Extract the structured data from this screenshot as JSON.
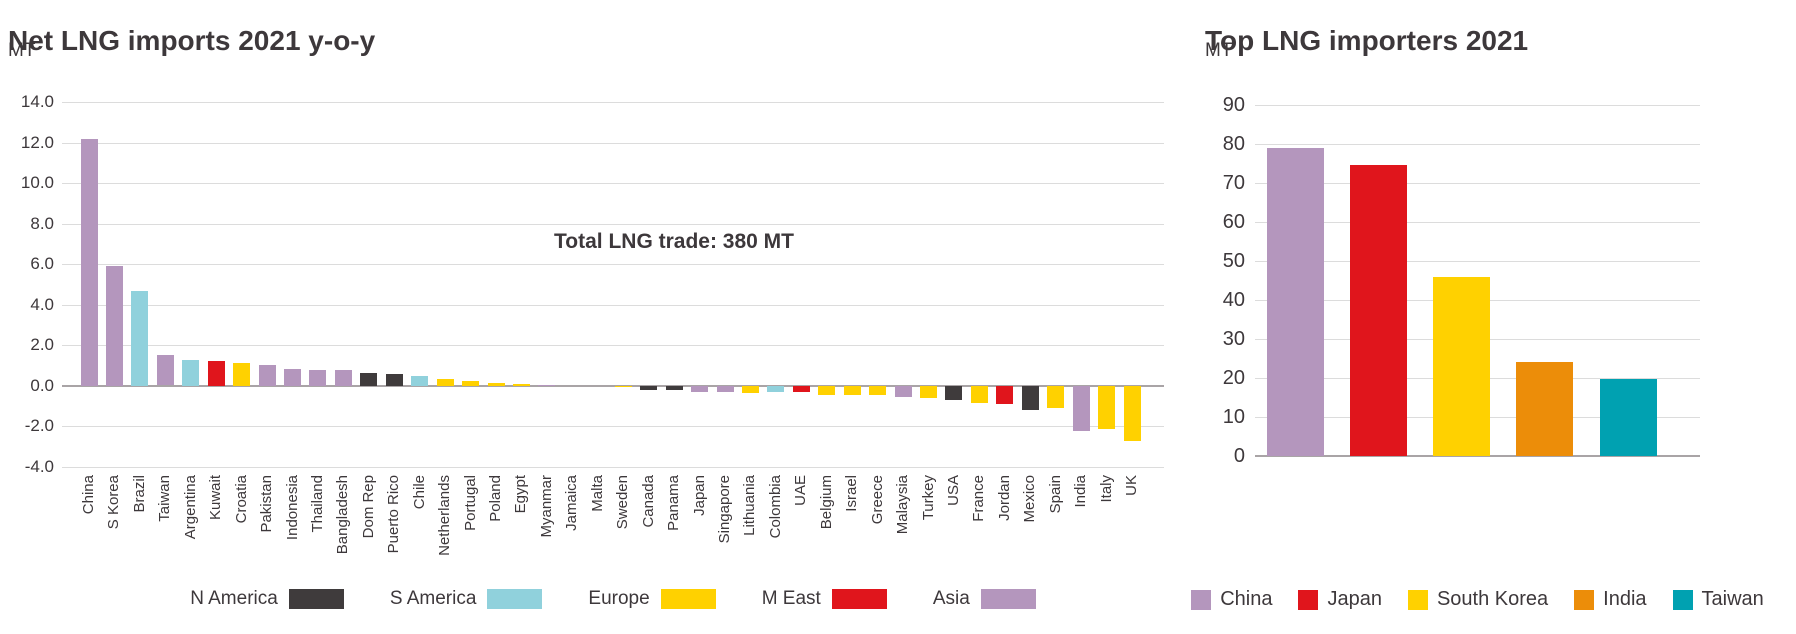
{
  "chart_data": [
    {
      "id": "net-lng-imports-yoy",
      "type": "bar",
      "title": "Net LNG imports 2021 y-o-y",
      "ylabel": "MT",
      "annotation": "Total LNG trade: 380 MT",
      "ylim": [
        -4,
        14
      ],
      "grid": true,
      "legend_position": "bottom",
      "y_ticks": [
        "14.0",
        "12.0",
        "10.0",
        "8.0",
        "6.0",
        "4.0",
        "2.0",
        "0.0",
        "-2.0",
        "-4.0"
      ],
      "categories": [
        "China",
        "S Korea",
        "Brazil",
        "Taiwan",
        "Argentina",
        "Kuwait",
        "Croatia",
        "Pakistan",
        "Indonesia",
        "Thailand",
        "Bangladesh",
        "Dom Rep",
        "Puerto Rico",
        "Chile",
        "Netherlands",
        "Portugal",
        "Poland",
        "Egypt",
        "Myanmar",
        "Jamaica",
        "Malta",
        "Sweden",
        "Canada",
        "Panama",
        "Japan",
        "Singapore",
        "Lithuania",
        "Colombia",
        "UAE",
        "Belgium",
        "Israel",
        "Greece",
        "Malaysia",
        "Turkey",
        "USA",
        "France",
        "Jordan",
        "Mexico",
        "Spain",
        "India",
        "Italy",
        "UK"
      ],
      "values": [
        12.2,
        5.9,
        4.7,
        1.5,
        1.3,
        1.25,
        1.15,
        1.05,
        0.85,
        0.8,
        0.8,
        0.65,
        0.6,
        0.5,
        0.35,
        0.25,
        0.15,
        0.1,
        0.05,
        0,
        0,
        -0.05,
        -0.2,
        -0.2,
        -0.3,
        -0.3,
        -0.35,
        -0.3,
        -0.3,
        -0.45,
        -0.45,
        -0.45,
        -0.55,
        -0.6,
        -0.7,
        -0.85,
        -0.9,
        -1.2,
        -1.1,
        -2.2,
        -2.1,
        -2.7
      ],
      "regions": [
        "Asia",
        "Asia",
        "S America",
        "Asia",
        "S America",
        "M East",
        "Europe",
        "Asia",
        "Asia",
        "Asia",
        "Asia",
        "N America",
        "N America",
        "S America",
        "Europe",
        "Europe",
        "Europe",
        "Europe",
        "Asia",
        "N America",
        "Europe",
        "Europe",
        "N America",
        "N America",
        "Asia",
        "Asia",
        "Europe",
        "S America",
        "M East",
        "Europe",
        "Europe",
        "Europe",
        "Asia",
        "Europe",
        "N America",
        "Europe",
        "M East",
        "N America",
        "Europe",
        "Asia",
        "Europe",
        "Europe"
      ],
      "legend_order": [
        "N America",
        "S America",
        "Europe",
        "M East",
        "Asia"
      ],
      "region_colors": {
        "N America": "#3f3b3c",
        "S America": "#90d1dc",
        "Europe": "#ffd100",
        "M East": "#e0151c",
        "Asia": "#b496bd"
      }
    },
    {
      "id": "top-lng-importers",
      "type": "bar",
      "title": "Top LNG importers 2021",
      "ylabel": "MT",
      "ylim": [
        0,
        90
      ],
      "grid": true,
      "legend_position": "bottom",
      "y_ticks": [
        "90",
        "80",
        "70",
        "60",
        "50",
        "40",
        "30",
        "20",
        "10",
        "0"
      ],
      "categories": [
        "China",
        "Japan",
        "South Korea",
        "India",
        "Taiwan"
      ],
      "values": [
        79,
        74.5,
        46,
        24,
        19.7
      ],
      "colors": [
        "#b496bd",
        "#e0151c",
        "#ffd100",
        "#ec8d09",
        "#00a1b1"
      ]
    }
  ]
}
